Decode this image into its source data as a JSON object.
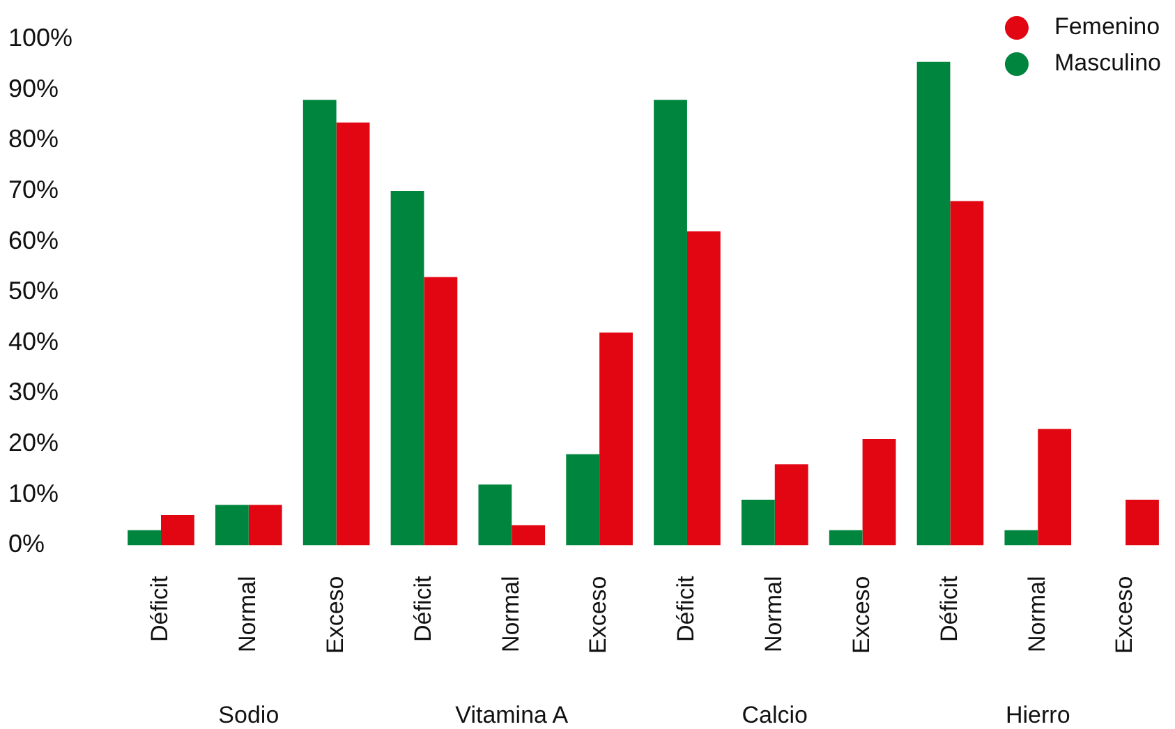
{
  "chart_data": {
    "type": "bar",
    "categories": [
      "Déficit",
      "Normal",
      "Exceso",
      "Déficit",
      "Normal",
      "Exceso",
      "Déficit",
      "Normal",
      "Exceso",
      "Déficit",
      "Normal",
      "Exceso"
    ],
    "series": [
      {
        "name": "Masculino",
        "color": "#00853e",
        "values": [
          3,
          8,
          88,
          70,
          12,
          18,
          88,
          9,
          3,
          95.5,
          3,
          0
        ]
      },
      {
        "name": "Femenino",
        "color": "#e20613",
        "values": [
          6,
          8,
          83.5,
          53,
          4,
          42,
          62,
          16,
          21,
          68,
          23,
          9
        ]
      }
    ],
    "annotations": [
      "Sodio",
      "Vitamina A",
      "Calcio",
      "Hierro"
    ],
    "ylim": [
      0,
      100
    ],
    "yticks": [
      {
        "value": 0,
        "label": "0%"
      },
      {
        "value": 10,
        "label": "10%"
      },
      {
        "value": 20,
        "label": "20%"
      },
      {
        "value": 30,
        "label": "30%"
      },
      {
        "value": 40,
        "label": "40%"
      },
      {
        "value": 50,
        "label": "50%"
      },
      {
        "value": 60,
        "label": "60%"
      },
      {
        "value": 70,
        "label": "70%"
      },
      {
        "value": 80,
        "label": "80%"
      },
      {
        "value": 90,
        "label": "90%"
      },
      {
        "value": 100,
        "label": "100%"
      }
    ],
    "grid": false,
    "legend": "top right"
  }
}
